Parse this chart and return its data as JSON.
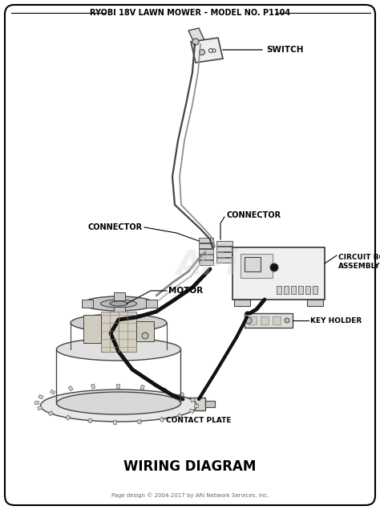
{
  "title": "RYOBI 18V LAWN MOWER – MODEL NO. P1104",
  "subtitle": "WIRING DIAGRAM",
  "footer": "Page design © 2004-2017 by ARI Network Services, Inc.",
  "bg": "#ffffff",
  "lc": "#000000",
  "tc": "#000000",
  "gray1": "#444444",
  "gray2": "#888888",
  "gray3": "#bbbbbb",
  "gray4": "#dddddd",
  "figsize": [
    4.74,
    6.35
  ],
  "dpi": 100,
  "labels": {
    "switch": "SWITCH",
    "conn_left": "CONNECTOR",
    "conn_right": "CONNECTOR",
    "motor": "MOTOR",
    "circuit_board": "CIRCUIT BOARD\nASSEMBLY",
    "key_holder": "KEY HOLDER",
    "contact_plate": "CONTACT PLATE"
  }
}
